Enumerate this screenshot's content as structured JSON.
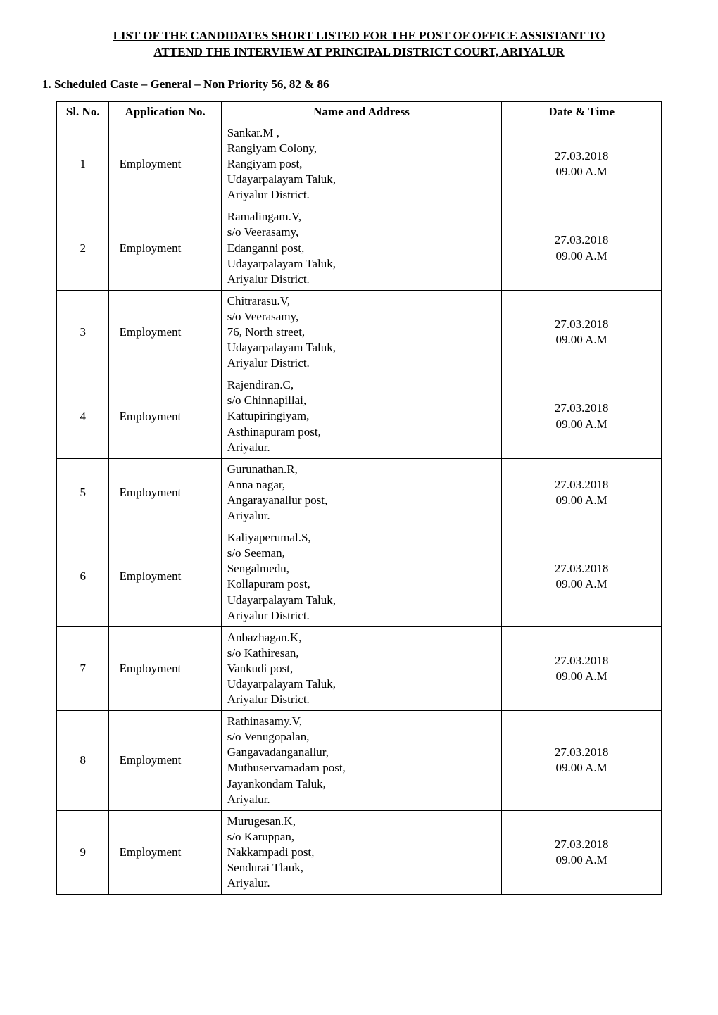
{
  "title_line1": "LIST OF THE CANDIDATES SHORT LISTED FOR THE POST OF OFFICE ASSISTANT TO",
  "title_line2": "ATTEND  THE INTERVIEW AT PRINCIPAL DISTRICT COURT, ARIYALUR",
  "subtitle": "1. Scheduled Caste – General – Non Priority 56, 82 & 86",
  "columns": {
    "sl": "Sl. No.",
    "app": "Application No.",
    "name": "Name and Address",
    "dt": "Date & Time"
  },
  "rows": [
    {
      "sl": "1",
      "app": "Employment",
      "addr": [
        "Sankar.M ,",
        "Rangiyam Colony,",
        "Rangiyam post,",
        "Udayarpalayam Taluk,",
        "Ariyalur District."
      ],
      "date": "27.03.2018",
      "time": "09.00 A.M"
    },
    {
      "sl": "2",
      "app": "Employment",
      "addr": [
        "Ramalingam.V,",
        "s/o Veerasamy,",
        "Edanganni post,",
        "Udayarpalayam Taluk,",
        "Ariyalur District."
      ],
      "date": "27.03.2018",
      "time": "09.00 A.M"
    },
    {
      "sl": "3",
      "app": "Employment",
      "addr": [
        "Chitrarasu.V,",
        "s/o Veerasamy,",
        "76, North street,",
        "Udayarpalayam Taluk,",
        "Ariyalur District."
      ],
      "date": "27.03.2018",
      "time": "09.00 A.M"
    },
    {
      "sl": "4",
      "app": "Employment",
      "addr": [
        "Rajendiran.C,",
        "s/o Chinnapillai,",
        "Kattupiringiyam,",
        "Asthinapuram post,",
        "Ariyalur."
      ],
      "date": "27.03.2018",
      "time": "09.00 A.M"
    },
    {
      "sl": "5",
      "app": "Employment",
      "addr": [
        "Gurunathan.R,",
        "Anna nagar,",
        "Angarayanallur post,",
        "Ariyalur."
      ],
      "date": "27.03.2018",
      "time": "09.00 A.M"
    },
    {
      "sl": "6",
      "app": "Employment",
      "addr": [
        "Kaliyaperumal.S,",
        "s/o Seeman,",
        "Sengalmedu,",
        "Kollapuram post,",
        "Udayarpalayam Taluk,",
        "Ariyalur District."
      ],
      "date": "27.03.2018",
      "time": "09.00 A.M"
    },
    {
      "sl": "7",
      "app": "Employment",
      "addr": [
        "Anbazhagan.K,",
        "s/o Kathiresan,",
        "Vankudi post,",
        "Udayarpalayam Taluk,",
        "Ariyalur District."
      ],
      "date": "27.03.2018",
      "time": "09.00 A.M"
    },
    {
      "sl": "8",
      "app": "Employment",
      "addr": [
        "Rathinasamy.V,",
        "s/o Venugopalan,",
        "Gangavadanganallur,",
        "Muthuservamadam post,",
        "Jayankondam Taluk,",
        "Ariyalur."
      ],
      "date": "27.03.2018",
      "time": "09.00 A.M"
    },
    {
      "sl": "9",
      "app": "Employment",
      "addr": [
        "Murugesan.K,",
        "s/o Karuppan,",
        "Nakkampadi post,",
        "Sendurai Tlauk,",
        "Ariyalur."
      ],
      "date": "27.03.2018",
      "time": "09.00 A.M"
    }
  ]
}
